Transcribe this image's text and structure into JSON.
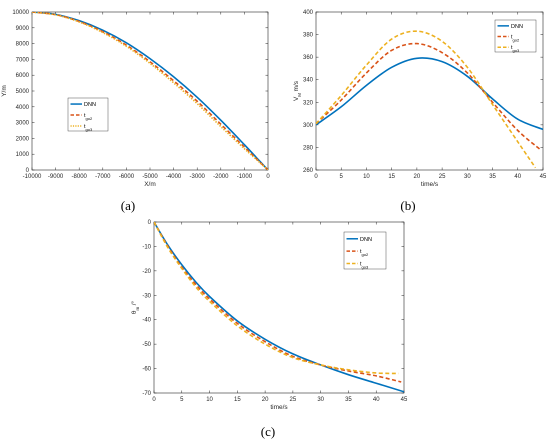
{
  "chart_data": [
    {
      "panel_label": "(a)",
      "type": "line",
      "xlabel": "X/m",
      "ylabel": "Y/m",
      "xlim": [
        -10000,
        0
      ],
      "ylim": [
        0,
        10000
      ],
      "xticks": [
        -10000,
        -9000,
        -8000,
        -7000,
        -6000,
        -5000,
        -4000,
        -3000,
        -2000,
        -1000,
        0
      ],
      "yticks": [
        0,
        1000,
        2000,
        3000,
        4000,
        5000,
        6000,
        7000,
        8000,
        9000,
        10000
      ],
      "legend_position": "middle-left",
      "series": [
        {
          "name": "DNN",
          "sub": "",
          "color": "#0072BD",
          "style": "solid",
          "x": [
            -10000,
            -9000,
            -8000,
            -7000,
            -6000,
            -5000,
            -4000,
            -3000,
            -2000,
            -1000,
            -500,
            0
          ],
          "y": [
            10000,
            9850,
            9450,
            8850,
            8050,
            7050,
            5900,
            4600,
            3150,
            1600,
            800,
            0
          ]
        },
        {
          "name": "t",
          "sub": "go2",
          "color": "#D95319",
          "style": "dash",
          "x": [
            -10000,
            -9000,
            -8000,
            -7000,
            -6000,
            -5000,
            -4000,
            -3000,
            -2000,
            -1000,
            -500,
            0
          ],
          "y": [
            10000,
            9830,
            9400,
            8750,
            7900,
            6850,
            5650,
            4350,
            2900,
            1450,
            720,
            0
          ]
        },
        {
          "name": "t",
          "sub": "go3",
          "color": "#EDB120",
          "style": "dot",
          "x": [
            -10000,
            -9000,
            -8000,
            -7000,
            -6000,
            -5000,
            -4000,
            -3000,
            -2000,
            -1000,
            -500,
            0
          ],
          "y": [
            10000,
            9820,
            9370,
            8700,
            7830,
            6750,
            5520,
            4200,
            2750,
            1350,
            680,
            0
          ]
        }
      ]
    },
    {
      "panel_label": "(b)",
      "type": "line",
      "xlabel": "time/s",
      "ylabel": "V",
      "ylabel_sub": "M",
      "ylabel_suffix": "m/s",
      "xlim": [
        0,
        45
      ],
      "ylim": [
        260,
        400
      ],
      "xticks": [
        0,
        5,
        10,
        15,
        20,
        25,
        30,
        35,
        40,
        45
      ],
      "yticks": [
        260,
        280,
        300,
        320,
        340,
        360,
        380,
        400
      ],
      "legend_position": "top-right",
      "series": [
        {
          "name": "DNN",
          "sub": "",
          "color": "#0072BD",
          "style": "solid",
          "x": [
            0,
            5,
            10,
            15,
            20,
            25,
            30,
            35,
            40,
            45
          ],
          "y": [
            300,
            316,
            335,
            351,
            359,
            356,
            343,
            323,
            305,
            296
          ]
        },
        {
          "name": "t",
          "sub": "go2",
          "color": "#D95319",
          "style": "dash",
          "x": [
            0,
            5,
            10,
            15,
            20,
            25,
            30,
            35,
            40,
            44.5
          ],
          "y": [
            301,
            322,
            346,
            366,
            372,
            364,
            346,
            320,
            295,
            278
          ]
        },
        {
          "name": "t",
          "sub": "go3",
          "color": "#EDB120",
          "style": "dash",
          "x": [
            0,
            5,
            10,
            15,
            20,
            25,
            30,
            35,
            40,
            43.5
          ],
          "y": [
            301,
            326,
            353,
            376,
            383,
            374,
            351,
            318,
            285,
            262
          ]
        }
      ]
    },
    {
      "panel_label": "(c)",
      "type": "line",
      "xlabel": "time/s",
      "ylabel": "θ",
      "ylabel_sub": "m",
      "ylabel_suffix": "/°",
      "xlim": [
        0,
        45
      ],
      "ylim": [
        -70,
        0
      ],
      "xticks": [
        0,
        5,
        10,
        15,
        20,
        25,
        30,
        35,
        40,
        45
      ],
      "yticks": [
        -70,
        -60,
        -50,
        -40,
        -30,
        -20,
        -10,
        0
      ],
      "legend_position": "top-right",
      "series": [
        {
          "name": "DNN",
          "sub": "",
          "color": "#0072BD",
          "style": "solid",
          "x": [
            0,
            2.5,
            5,
            7.5,
            10,
            15,
            20,
            25,
            30,
            35,
            40,
            45
          ],
          "y": [
            0,
            -9.5,
            -17.5,
            -24.5,
            -30.5,
            -40.5,
            -48,
            -54,
            -58.5,
            -62.5,
            -66,
            -69.5
          ]
        },
        {
          "name": "t",
          "sub": "go2",
          "color": "#D95319",
          "style": "dash",
          "x": [
            0,
            2.5,
            5,
            7.5,
            10,
            15,
            20,
            25,
            30,
            35,
            40,
            44.5
          ],
          "y": [
            0,
            -10,
            -18.5,
            -25.5,
            -31.5,
            -41.5,
            -49,
            -55,
            -58.5,
            -61,
            -63,
            -65.5
          ]
        },
        {
          "name": "t",
          "sub": "go3",
          "color": "#EDB120",
          "style": "dash",
          "x": [
            0,
            2.5,
            5,
            7.5,
            10,
            15,
            20,
            25,
            30,
            35,
            40,
            44
          ],
          "y": [
            0,
            -10.5,
            -19,
            -26.5,
            -32.5,
            -42.5,
            -50,
            -55.5,
            -58.5,
            -60.5,
            -61.8,
            -62
          ]
        }
      ]
    }
  ]
}
